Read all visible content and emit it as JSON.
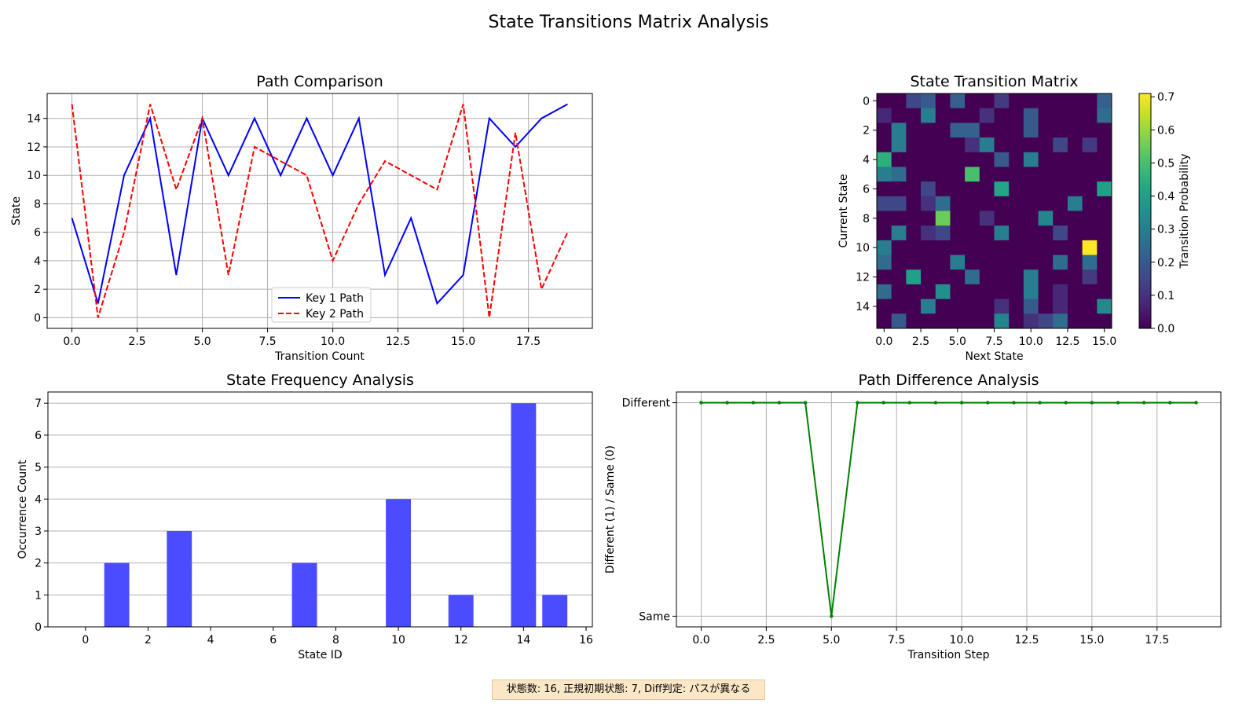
{
  "suptitle": "State Transitions Matrix Analysis",
  "footer_note": "状態数: 16, 正規初期状態: 7, Diff判定: パスが異なる",
  "colors": {
    "key1": "#0000ff",
    "key2": "#ff0000",
    "bars": "#4b4bff",
    "diff": "#008000",
    "grid": "#b0b0b0",
    "footer_bg": "#fbe7c6"
  },
  "chart_data": [
    {
      "id": "path_comparison",
      "type": "line",
      "title": "Path Comparison",
      "xlabel": "Transition Count",
      "ylabel": "State",
      "xlim": [
        -0.95,
        19.95
      ],
      "ylim": [
        -0.75,
        15.75
      ],
      "xticks": [
        0,
        2.5,
        5,
        7.5,
        10,
        12.5,
        15,
        17.5
      ],
      "xtick_labels": [
        "0.0",
        "2.5",
        "5.0",
        "7.5",
        "10.0",
        "12.5",
        "15.0",
        "17.5"
      ],
      "yticks": [
        0,
        2,
        4,
        6,
        8,
        10,
        12,
        14
      ],
      "grid": true,
      "legend_position": "lower center",
      "x": [
        0,
        1,
        2,
        3,
        4,
        5,
        6,
        7,
        8,
        9,
        10,
        11,
        12,
        13,
        14,
        15,
        16,
        17,
        18,
        19
      ],
      "series": [
        {
          "name": "Key 1 Path",
          "style": "solid",
          "color": "#0000ff",
          "values": [
            7,
            1,
            10,
            14,
            3,
            14,
            10,
            14,
            10,
            14,
            10,
            14,
            3,
            7,
            1,
            3,
            14,
            12,
            14,
            15
          ]
        },
        {
          "name": "Key 2 Path",
          "style": "dashed",
          "color": "#ff0000",
          "values": [
            15,
            0,
            6,
            15,
            9,
            14,
            3,
            12,
            11,
            10,
            4,
            8,
            11,
            10,
            9,
            15,
            0,
            13,
            2,
            6
          ]
        }
      ]
    },
    {
      "id": "transition_matrix",
      "type": "heatmap",
      "title": "State Transition Matrix",
      "xlabel": "Next State",
      "ylabel": "Current State",
      "xticks": [
        0,
        2.5,
        5,
        7.5,
        10,
        12.5,
        15
      ],
      "xtick_labels": [
        "0.0",
        "2.5",
        "5.0",
        "7.5",
        "10.0",
        "12.5",
        "15.0"
      ],
      "yticks": [
        0,
        2,
        4,
        6,
        8,
        10,
        12,
        14
      ],
      "colorbar_label": "Transition Probability",
      "colorbar_ticks": [
        0.0,
        0.1,
        0.2,
        0.3,
        0.4,
        0.5,
        0.6,
        0.7
      ],
      "colorbar_tick_labels": [
        "0.0",
        "0.1",
        "0.2",
        "0.3",
        "0.4",
        "0.5",
        "0.6",
        "0.7"
      ],
      "vmin": 0,
      "vmax": 0.71,
      "colormap": "viridis",
      "matrix": [
        [
          0,
          0,
          0.15,
          0.2,
          0,
          0.22,
          0,
          0,
          0.12,
          0,
          0,
          0,
          0,
          0,
          0,
          0.22
        ],
        [
          0.08,
          0,
          0,
          0.3,
          0,
          0,
          0,
          0.1,
          0,
          0,
          0.2,
          0,
          0,
          0,
          0,
          0.25
        ],
        [
          0,
          0.3,
          0,
          0,
          0,
          0.22,
          0.22,
          0,
          0,
          0,
          0.2,
          0,
          0,
          0,
          0,
          0
        ],
        [
          0,
          0.3,
          0,
          0,
          0,
          0,
          0.1,
          0.3,
          0,
          0,
          0,
          0,
          0.15,
          0,
          0.12,
          0
        ],
        [
          0.45,
          0,
          0,
          0,
          0,
          0,
          0,
          0,
          0.2,
          0,
          0.3,
          0,
          0,
          0,
          0,
          0
        ],
        [
          0.3,
          0.25,
          0,
          0,
          0,
          0,
          0.5,
          0,
          0,
          0,
          0,
          0,
          0,
          0,
          0,
          0
        ],
        [
          0,
          0,
          0,
          0.15,
          0,
          0,
          0,
          0,
          0.42,
          0,
          0,
          0,
          0,
          0,
          0,
          0.4
        ],
        [
          0.15,
          0.15,
          0,
          0.1,
          0.25,
          0,
          0,
          0,
          0,
          0,
          0,
          0,
          0,
          0.3,
          0,
          0
        ],
        [
          0,
          0,
          0,
          0,
          0.55,
          0,
          0,
          0.1,
          0,
          0,
          0,
          0.32,
          0,
          0,
          0,
          0
        ],
        [
          0,
          0.3,
          0,
          0.1,
          0.15,
          0,
          0,
          0,
          0.3,
          0,
          0,
          0,
          0.15,
          0,
          0,
          0
        ],
        [
          0.3,
          0,
          0,
          0,
          0,
          0,
          0,
          0,
          0,
          0,
          0,
          0,
          0,
          0,
          0.71,
          0
        ],
        [
          0.25,
          0,
          0,
          0,
          0,
          0.3,
          0,
          0,
          0,
          0,
          0,
          0,
          0.25,
          0,
          0.25,
          0
        ],
        [
          0,
          0,
          0.4,
          0,
          0,
          0,
          0.25,
          0,
          0,
          0,
          0.3,
          0,
          0,
          0,
          0.12,
          0
        ],
        [
          0.25,
          0,
          0,
          0,
          0.35,
          0,
          0,
          0,
          0,
          0,
          0.3,
          0,
          0.08,
          0,
          0,
          0
        ],
        [
          0,
          0,
          0,
          0.3,
          0,
          0,
          0,
          0,
          0.1,
          0,
          0.2,
          0,
          0.08,
          0,
          0,
          0.33
        ],
        [
          0,
          0.2,
          0,
          0,
          0,
          0,
          0,
          0,
          0.32,
          0,
          0.1,
          0.15,
          0.25,
          0,
          0,
          0
        ]
      ]
    },
    {
      "id": "state_frequency",
      "type": "bar",
      "title": "State Frequency Analysis",
      "xlabel": "State ID",
      "ylabel": "Occurrence Count",
      "xlim": [
        -1.2,
        16.2
      ],
      "ylim": [
        0,
        7.35
      ],
      "xticks": [
        0,
        2,
        4,
        6,
        8,
        10,
        12,
        14,
        16
      ],
      "yticks": [
        0,
        1,
        2,
        3,
        4,
        5,
        6,
        7
      ],
      "grid": "y",
      "categories": [
        0,
        1,
        2,
        3,
        4,
        5,
        6,
        7,
        8,
        9,
        10,
        11,
        12,
        13,
        14,
        15
      ],
      "values": [
        0,
        2,
        0,
        3,
        0,
        0,
        0,
        2,
        0,
        0,
        4,
        0,
        1,
        0,
        7,
        1
      ]
    },
    {
      "id": "path_difference",
      "type": "line",
      "title": "Path Difference Analysis",
      "xlabel": "Transition Step",
      "ylabel": "Different (1) / Same (0)",
      "xlim": [
        -0.95,
        19.95
      ],
      "ylim": [
        -0.05,
        1.05
      ],
      "xticks": [
        0,
        2.5,
        5,
        7.5,
        10,
        12.5,
        15,
        17.5
      ],
      "xtick_labels": [
        "0.0",
        "2.5",
        "5.0",
        "7.5",
        "10.0",
        "12.5",
        "15.0",
        "17.5"
      ],
      "yticks": [
        0,
        1
      ],
      "ytick_labels": [
        "Same",
        "Different"
      ],
      "grid": true,
      "x": [
        0,
        1,
        2,
        3,
        4,
        5,
        6,
        7,
        8,
        9,
        10,
        11,
        12,
        13,
        14,
        15,
        16,
        17,
        18,
        19
      ],
      "series": [
        {
          "color": "#008000",
          "marker": "dot",
          "values": [
            1,
            1,
            1,
            1,
            1,
            0,
            1,
            1,
            1,
            1,
            1,
            1,
            1,
            1,
            1,
            1,
            1,
            1,
            1,
            1
          ]
        }
      ]
    }
  ]
}
